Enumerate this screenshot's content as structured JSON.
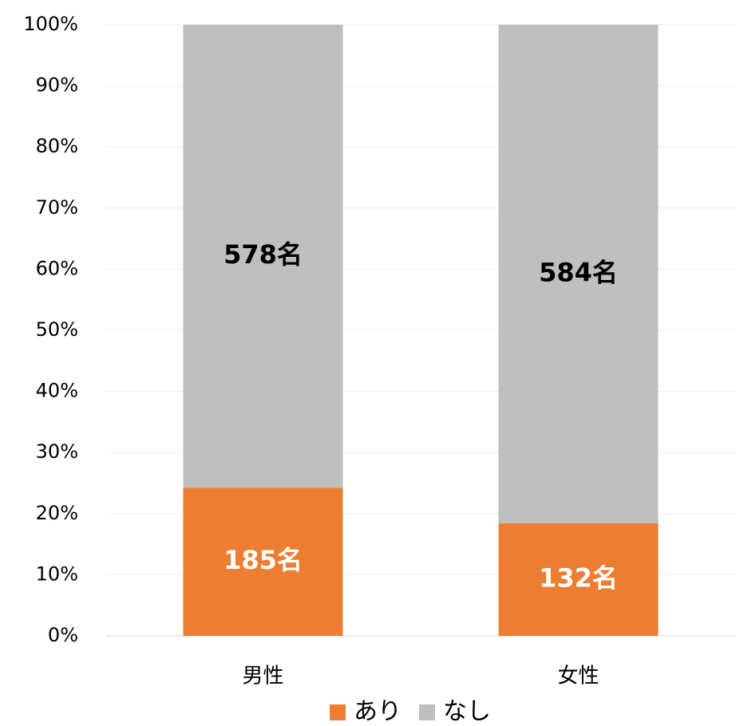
{
  "chart_data": {
    "type": "bar",
    "stacking": "percent",
    "categories": [
      "男性",
      "女性"
    ],
    "series": [
      {
        "name": "あり",
        "color": "#ed7d31",
        "values": [
          185,
          132
        ],
        "value_labels": [
          "185名",
          "132名"
        ]
      },
      {
        "name": "なし",
        "color": "#bfbfbf",
        "values": [
          578,
          584
        ],
        "value_labels": [
          "578名",
          "584名"
        ]
      }
    ],
    "ylim": [
      0,
      100
    ],
    "yticks": [
      {
        "value": 0,
        "label": "0%"
      },
      {
        "value": 10,
        "label": "10%"
      },
      {
        "value": 20,
        "label": "20%"
      },
      {
        "value": 30,
        "label": "30%"
      },
      {
        "value": 40,
        "label": "40%"
      },
      {
        "value": 50,
        "label": "50%"
      },
      {
        "value": 60,
        "label": "60%"
      },
      {
        "value": 70,
        "label": "70%"
      },
      {
        "value": 80,
        "label": "80%"
      },
      {
        "value": 90,
        "label": "90%"
      },
      {
        "value": 100,
        "label": "100%"
      }
    ],
    "grid": true,
    "legend": "bottom"
  }
}
